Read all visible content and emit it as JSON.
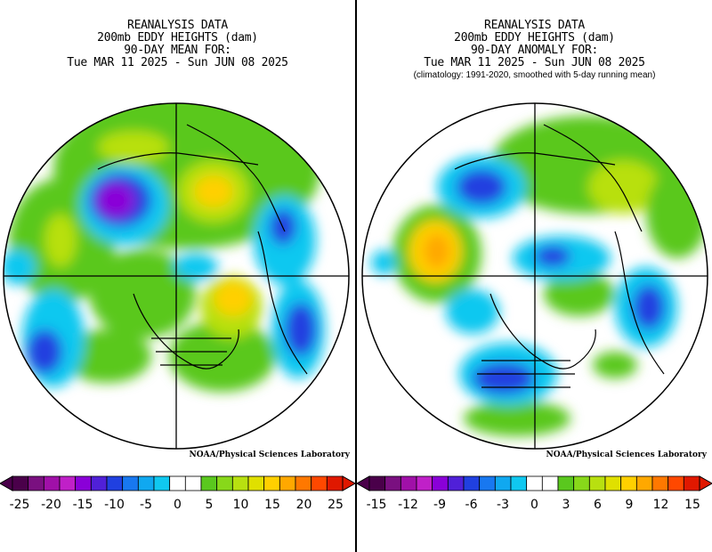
{
  "left": {
    "title_lines": [
      "REANALYSIS DATA",
      "200mb EDDY HEIGHTS (dam)",
      "90-DAY MEAN FOR:",
      "Tue MAR 11 2025 - Sun JUN 08 2025"
    ],
    "note": "",
    "credit": "NOAA/Physical Sciences Laboratory",
    "colorbar": {
      "colors": [
        "#4a004a",
        "#7a1080",
        "#a010a8",
        "#c020c8",
        "#8a00d8",
        "#5020d8",
        "#2040e0",
        "#1878f0",
        "#10a8f0",
        "#10c8f0",
        "#ffffff",
        "#ffffff",
        "#5ac81e",
        "#88d81a",
        "#b8e010",
        "#e0e000",
        "#ffd000",
        "#ffa800",
        "#ff7800",
        "#ff4800",
        "#e01800"
      ],
      "tick_labels": [
        "-25",
        "-20",
        "-15",
        "-10",
        "-5",
        "0",
        "5",
        "10",
        "15",
        "20",
        "25"
      ]
    }
  },
  "right": {
    "title_lines": [
      "REANALYSIS DATA",
      "200mb EDDY HEIGHTS (dam)",
      "90-DAY ANOMALY FOR:",
      "Tue MAR 11 2025 - Sun JUN 08 2025"
    ],
    "note": "(climatology: 1991-2020, smoothed with 5-day running mean)",
    "credit": "NOAA/Physical Sciences Laboratory",
    "colorbar": {
      "colors": [
        "#4a004a",
        "#7a1080",
        "#a010a8",
        "#c020c8",
        "#8a00d8",
        "#5020d8",
        "#2040e0",
        "#1878f0",
        "#10a8f0",
        "#10c8f0",
        "#ffffff",
        "#ffffff",
        "#5ac81e",
        "#88d81a",
        "#b8e010",
        "#e0e000",
        "#ffd000",
        "#ffa800",
        "#ff7800",
        "#ff4800",
        "#e01800"
      ],
      "tick_labels": [
        "-15",
        "-12",
        "-9",
        "-6",
        "-3",
        "0",
        "3",
        "6",
        "9",
        "12",
        "15"
      ]
    }
  }
}
